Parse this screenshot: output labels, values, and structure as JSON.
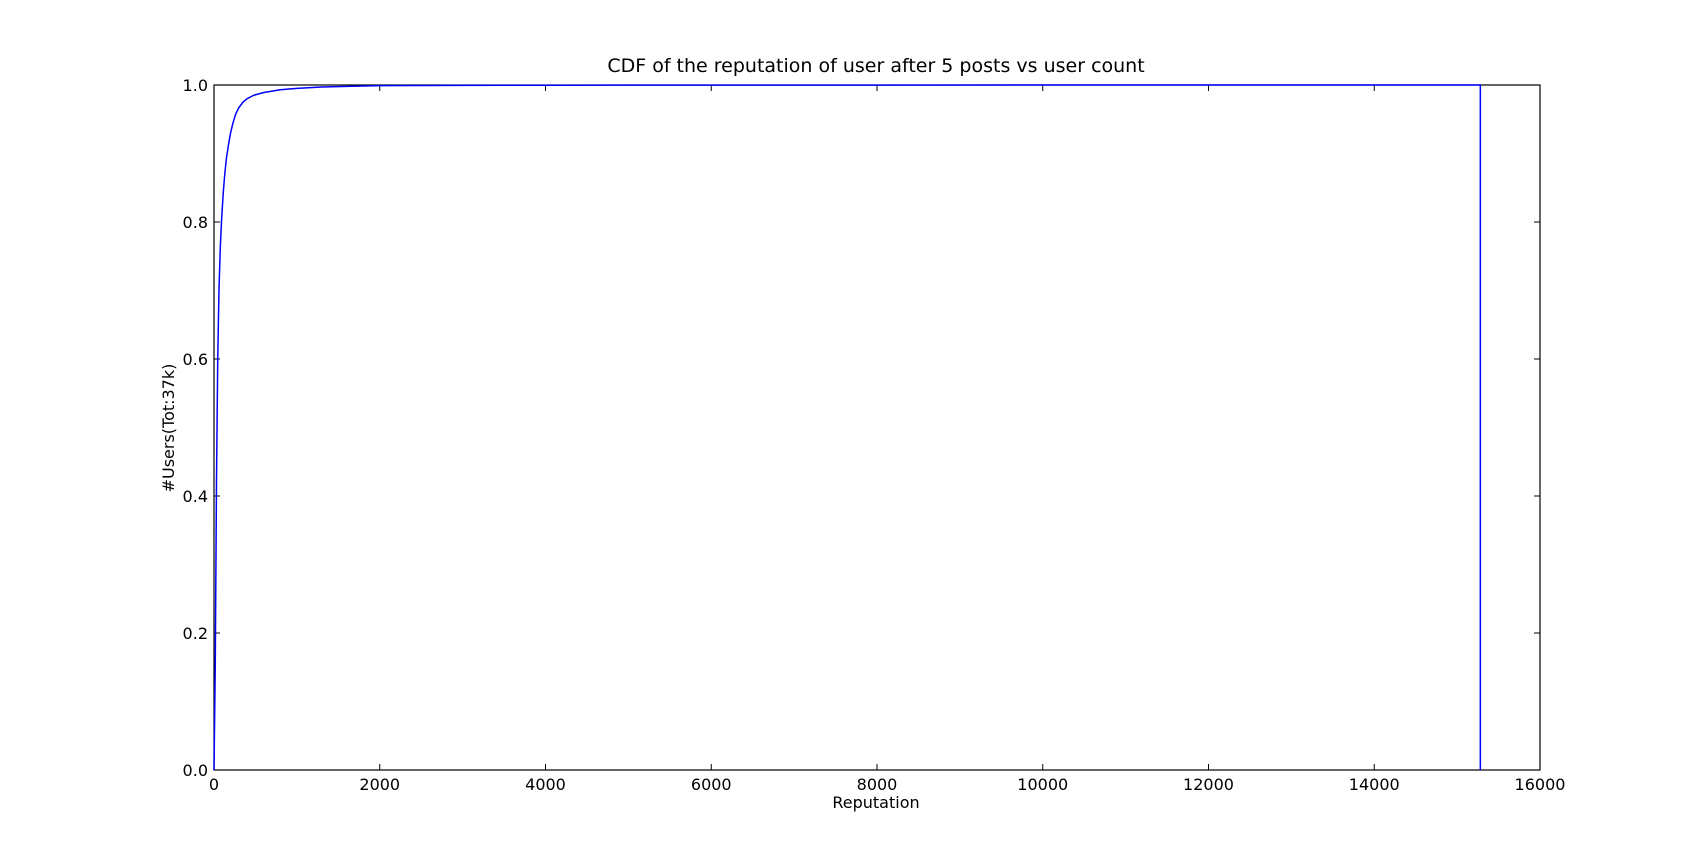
{
  "chart_data": {
    "type": "line",
    "title": "CDF of the reputation of user after 5 posts vs user count",
    "xlabel": "Reputation",
    "ylabel": "#Users(Tot:37k)",
    "xlim": [
      0,
      16000
    ],
    "ylim": [
      0.0,
      1.0
    ],
    "x_ticks": [
      0,
      2000,
      4000,
      6000,
      8000,
      10000,
      12000,
      14000,
      16000
    ],
    "x_tick_labels": [
      "0",
      "2000",
      "4000",
      "6000",
      "8000",
      "10000",
      "12000",
      "14000",
      "16000"
    ],
    "y_ticks": [
      0.0,
      0.2,
      0.4,
      0.6,
      0.8,
      1.0
    ],
    "y_tick_labels": [
      "0.0",
      "0.2",
      "0.4",
      "0.6",
      "0.8",
      "1.0"
    ],
    "grid": false,
    "legend": "none",
    "series": [
      {
        "color": "#0000ff",
        "x": [
          0,
          15,
          30,
          45,
          60,
          75,
          90,
          110,
          130,
          150,
          175,
          200,
          230,
          260,
          300,
          350,
          400,
          480,
          600,
          800,
          1000,
          1300,
          1600,
          2000,
          3000,
          4000,
          6000,
          8000,
          10000,
          12000,
          14000,
          15280,
          15280
        ],
        "y": [
          0.0,
          0.15,
          0.42,
          0.6,
          0.7,
          0.76,
          0.8,
          0.84,
          0.87,
          0.893,
          0.913,
          0.93,
          0.945,
          0.957,
          0.967,
          0.975,
          0.98,
          0.985,
          0.989,
          0.993,
          0.995,
          0.997,
          0.998,
          0.999,
          0.9995,
          0.9997,
          0.9998,
          0.9999,
          0.99995,
          0.99998,
          0.99999,
          1.0,
          0.0
        ]
      }
    ]
  }
}
